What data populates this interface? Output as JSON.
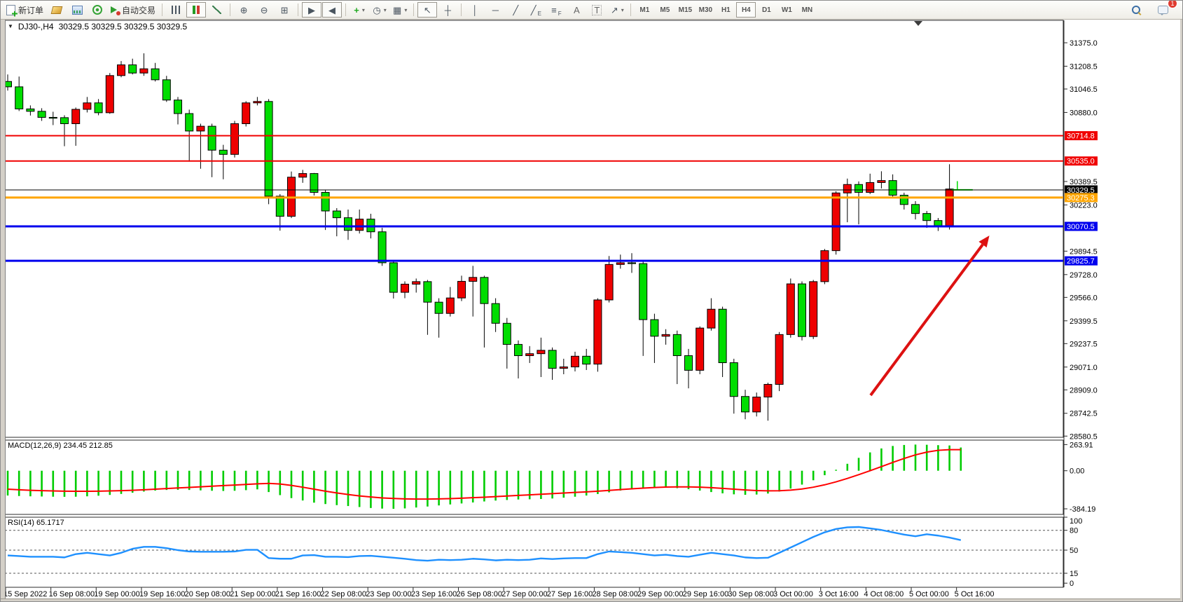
{
  "toolbar": {
    "new_order_label": "新订单",
    "autotrading_label": "自动交易",
    "notification_count": "1",
    "icons": {
      "collapse": "▼",
      "dropdown": "▾",
      "zoom_in": "⊕",
      "zoom_out": "⊖",
      "tile": "⊞",
      "autoscroll": "▶",
      "chart_shift": "◀",
      "indicators": "+",
      "clock": "◷",
      "template": "▦",
      "pointer": "↖",
      "crosshair": "┼",
      "vline": "│",
      "hline": "─",
      "trendline": "╱",
      "channel": "╱",
      "channel_sub": "E",
      "fibo": "≡",
      "fibo_sub": "F",
      "text_tool": "A",
      "label_tool": "T",
      "arrows_tool": "↗"
    },
    "timeframes": [
      {
        "label": "M1",
        "active": false
      },
      {
        "label": "M5",
        "active": false
      },
      {
        "label": "M15",
        "active": false
      },
      {
        "label": "M30",
        "active": false
      },
      {
        "label": "H1",
        "active": false
      },
      {
        "label": "H4",
        "active": true
      },
      {
        "label": "D1",
        "active": false
      },
      {
        "label": "W1",
        "active": false
      },
      {
        "label": "MN",
        "active": false
      }
    ]
  },
  "chart": {
    "title_symbol": "DJ30-,H4",
    "title_quotes": "30329.5 30329.5 30329.5 30329.5",
    "macd_label": "MACD(12,26,9) 234.45 212.85",
    "rsi_label": "RSI(14) 65.1717"
  },
  "chart_data": {
    "type": "candlestick",
    "symbol": "DJ30-",
    "period": "H4",
    "up_color": "#ee0000",
    "down_color": "#00dd00",
    "ohlc": [
      [
        31100,
        31150,
        31035,
        31062
      ],
      [
        31062,
        31135,
        30890,
        30905
      ],
      [
        30905,
        30930,
        30858,
        30888
      ],
      [
        30888,
        30910,
        30820,
        30845
      ],
      [
        30845,
        30885,
        30790,
        30840
      ],
      [
        30843,
        30860,
        30640,
        30800
      ],
      [
        30800,
        30915,
        30643,
        30902
      ],
      [
        30902,
        30990,
        30880,
        30948
      ],
      [
        30948,
        30975,
        30860,
        30878
      ],
      [
        30878,
        31160,
        30870,
        31142
      ],
      [
        31142,
        31245,
        31130,
        31218
      ],
      [
        31218,
        31262,
        31150,
        31160
      ],
      [
        31160,
        31300,
        31140,
        31190
      ],
      [
        31190,
        31232,
        31100,
        31112
      ],
      [
        31112,
        31140,
        30955,
        30968
      ],
      [
        30968,
        30990,
        30795,
        30872
      ],
      [
        30872,
        30900,
        30530,
        30748
      ],
      [
        30748,
        30800,
        30480,
        30782
      ],
      [
        30782,
        30800,
        30420,
        30612
      ],
      [
        30612,
        30650,
        30405,
        30582
      ],
      [
        30582,
        30820,
        30560,
        30800
      ],
      [
        30800,
        30960,
        30780,
        30948
      ],
      [
        30948,
        30990,
        30930,
        30958
      ],
      [
        30958,
        30975,
        30228,
        30285
      ],
      [
        30285,
        30300,
        30040,
        30142
      ],
      [
        30142,
        30460,
        30130,
        30420
      ],
      [
        30420,
        30472,
        30380,
        30446
      ],
      [
        30446,
        30450,
        30290,
        30312
      ],
      [
        30312,
        30330,
        30045,
        30180
      ],
      [
        30180,
        30200,
        30000,
        30132
      ],
      [
        30132,
        30190,
        29975,
        30042
      ],
      [
        30042,
        30190,
        30020,
        30122
      ],
      [
        30122,
        30160,
        29985,
        30032
      ],
      [
        30032,
        30060,
        29790,
        29812
      ],
      [
        29812,
        29830,
        29558,
        29602
      ],
      [
        29602,
        29680,
        29560,
        29660
      ],
      [
        29660,
        29700,
        29600,
        29678
      ],
      [
        29678,
        29690,
        29300,
        29532
      ],
      [
        29532,
        29560,
        29280,
        29452
      ],
      [
        29452,
        29640,
        29430,
        29562
      ],
      [
        29562,
        29720,
        29540,
        29680
      ],
      [
        29680,
        29790,
        29430,
        29708
      ],
      [
        29708,
        29720,
        29210,
        29522
      ],
      [
        29522,
        29560,
        29320,
        29382
      ],
      [
        29382,
        29420,
        29060,
        29232
      ],
      [
        29232,
        29260,
        28990,
        29152
      ],
      [
        29152,
        29220,
        29100,
        29166
      ],
      [
        29166,
        29280,
        29000,
        29190
      ],
      [
        29190,
        29210,
        28980,
        29062
      ],
      [
        29062,
        29130,
        29020,
        29072
      ],
      [
        29072,
        29180,
        29040,
        29148
      ],
      [
        29148,
        29200,
        29050,
        29092
      ],
      [
        29092,
        29560,
        29038,
        29548
      ],
      [
        29548,
        29860,
        29530,
        29800
      ],
      [
        29800,
        29870,
        29770,
        29812
      ],
      [
        29812,
        29880,
        29740,
        29806
      ],
      [
        29806,
        29820,
        29150,
        29408
      ],
      [
        29408,
        29450,
        29100,
        29290
      ],
      [
        29290,
        29340,
        29230,
        29302
      ],
      [
        29302,
        29330,
        28950,
        29152
      ],
      [
        29152,
        29200,
        28920,
        29048
      ],
      [
        29048,
        29360,
        29020,
        29348
      ],
      [
        29348,
        29560,
        29330,
        29482
      ],
      [
        29482,
        29500,
        29000,
        29102
      ],
      [
        29102,
        29130,
        28740,
        28862
      ],
      [
        28862,
        28910,
        28700,
        28752
      ],
      [
        28752,
        28890,
        28720,
        28858
      ],
      [
        28858,
        28960,
        28690,
        28948
      ],
      [
        28948,
        29320,
        28900,
        29302
      ],
      [
        29302,
        29700,
        29280,
        29662
      ],
      [
        29662,
        29680,
        29260,
        29288
      ],
      [
        29288,
        29690,
        29270,
        29678
      ],
      [
        29678,
        29910,
        29660,
        29898
      ],
      [
        29898,
        30320,
        29870,
        30308
      ],
      [
        30308,
        30410,
        30100,
        30368
      ],
      [
        30368,
        30390,
        30085,
        30312
      ],
      [
        30312,
        30445,
        30300,
        30382
      ],
      [
        30382,
        30462,
        30340,
        30396
      ],
      [
        30396,
        30440,
        30280,
        30292
      ],
      [
        30292,
        30310,
        30190,
        30226
      ],
      [
        30226,
        30250,
        30120,
        30162
      ],
      [
        30162,
        30180,
        30060,
        30112
      ],
      [
        30112,
        30130,
        30038,
        30076
      ],
      [
        30076,
        30512,
        30048,
        30336
      ],
      [
        30336,
        30392,
        30326,
        30330
      ]
    ],
    "price_ticks": [
      {
        "label": "31375.0",
        "value": 31375.0
      },
      {
        "label": "31208.5",
        "value": 31208.5
      },
      {
        "label": "31046.5",
        "value": 31046.5
      },
      {
        "label": "30880.0",
        "value": 30880.0
      },
      {
        "label": "30389.5",
        "value": 30389.5
      },
      {
        "label": "30223.0",
        "value": 30223.0
      },
      {
        "label": "29894.5",
        "value": 29894.5
      },
      {
        "label": "29728.0",
        "value": 29728.0
      },
      {
        "label": "29566.0",
        "value": 29566.0
      },
      {
        "label": "29399.5",
        "value": 29399.5
      },
      {
        "label": "29237.5",
        "value": 29237.5
      },
      {
        "label": "29071.0",
        "value": 29071.0
      },
      {
        "label": "28909.0",
        "value": 28909.0
      },
      {
        "label": "28742.5",
        "value": 28742.5
      },
      {
        "label": "28580.5",
        "value": 28580.5
      }
    ],
    "levels": [
      {
        "label": "30714.8",
        "value": 30714.8,
        "color": "#f00000",
        "width": 2
      },
      {
        "label": "30535.0",
        "value": 30535.0,
        "color": "#f00000",
        "width": 2
      },
      {
        "label": "30329.5",
        "value": 30329.5,
        "color": "#000000",
        "width": 1
      },
      {
        "label": "30275.3",
        "value": 30275.3,
        "color": "#ffa500",
        "width": 3
      },
      {
        "label": "30070.5",
        "value": 30070.5,
        "color": "#0000ee",
        "width": 3
      },
      {
        "label": "29825.7",
        "value": 29825.7,
        "color": "#0000ee",
        "width": 3
      }
    ],
    "macd": {
      "hist_color": "#00cc00",
      "signal_color": "#ff0000",
      "axis": [
        {
          "label": "263.91",
          "value": 263.91
        },
        {
          "label": "0.00",
          "value": 0
        },
        {
          "label": "-384.19",
          "value": -384.19
        }
      ],
      "histogram": [
        -250,
        -255,
        -258,
        -260,
        -262,
        -263,
        -262,
        -258,
        -252,
        -244,
        -234,
        -222,
        -210,
        -200,
        -194,
        -192,
        -194,
        -198,
        -202,
        -204,
        -202,
        -196,
        -188,
        -215,
        -246,
        -276,
        -300,
        -322,
        -336,
        -347,
        -356,
        -366,
        -376,
        -382,
        -384.19,
        -380,
        -371,
        -361,
        -350,
        -340,
        -330,
        -320,
        -310,
        -301,
        -295,
        -290,
        -288,
        -285,
        -280,
        -272,
        -262,
        -250,
        -235,
        -218,
        -200,
        -186,
        -176,
        -170,
        -170,
        -176,
        -186,
        -200,
        -215,
        -228,
        -238,
        -243,
        -240,
        -230,
        -210,
        -180,
        -140,
        -96,
        -45,
        10,
        70,
        130,
        185,
        225,
        250,
        260,
        263.91,
        262,
        258,
        255,
        234.45
      ],
      "signal": [
        -186,
        -192,
        -197,
        -201,
        -204,
        -206,
        -207,
        -207,
        -206,
        -204,
        -201,
        -197,
        -192,
        -186,
        -180,
        -174,
        -168,
        -162,
        -156,
        -150,
        -144,
        -138,
        -132,
        -128,
        -134,
        -148,
        -166,
        -186,
        -206,
        -224,
        -240,
        -254,
        -265,
        -274,
        -280,
        -284,
        -286,
        -286,
        -284,
        -281,
        -277,
        -272,
        -267,
        -261,
        -255,
        -249,
        -243,
        -237,
        -231,
        -225,
        -219,
        -213,
        -206,
        -198,
        -190,
        -182,
        -175,
        -169,
        -165,
        -163,
        -163,
        -166,
        -171,
        -178,
        -186,
        -194,
        -200,
        -203,
        -202,
        -196,
        -184,
        -166,
        -142,
        -112,
        -78,
        -40,
        0,
        42,
        84,
        124,
        160,
        188,
        206,
        213,
        212.85
      ]
    },
    "rsi": {
      "color": "#1e90ff",
      "dashed_levels": [
        80,
        50,
        15
      ],
      "axis": [
        {
          "label": "100",
          "value": 100
        },
        {
          "label": "80",
          "value": 80
        },
        {
          "label": "50",
          "value": 50
        },
        {
          "label": "15",
          "value": 15
        },
        {
          "label": "0",
          "value": 0
        }
      ],
      "values": [
        42,
        41,
        40,
        40,
        40,
        39,
        44,
        46,
        44,
        42,
        46,
        52,
        55,
        55,
        53,
        50,
        48,
        47.5,
        47.5,
        47.5,
        48,
        50.5,
        50.5,
        38,
        37,
        37,
        42,
        42.5,
        40,
        40,
        39.5,
        41,
        41.5,
        40,
        38.5,
        37,
        35,
        34,
        35.5,
        35,
        35.5,
        37,
        36,
        34.5,
        35.5,
        35,
        35.5,
        37.5,
        36.5,
        37.5,
        38,
        38,
        44,
        48,
        47,
        46,
        44,
        42,
        43,
        41,
        40,
        43,
        46,
        44,
        42,
        39,
        38,
        38.5,
        46,
        54,
        62,
        70,
        77,
        82,
        84.5,
        85,
        83,
        80.5,
        77,
        73.5,
        71,
        74,
        72,
        69,
        65.2
      ]
    },
    "time_labels": [
      "15 Sep 2022",
      "16 Sep 08:00",
      "19 Sep 00:00",
      "19 Sep 16:00",
      "20 Sep 08:00",
      "21 Sep 00:00",
      "21 Sep 16:00",
      "22 Sep 08:00",
      "23 Sep 00:00",
      "23 Sep 16:00",
      "26 Sep 08:00",
      "27 Sep 00:00",
      "27 Sep 16:00",
      "28 Sep 08:00",
      "29 Sep 00:00",
      "29 Sep 16:00",
      "30 Sep 08:00",
      "3 Oct 00:00",
      "3 Oct 16:00",
      "4 Oct 08:00",
      "5 Oct 00:00",
      "5 Oct 16:00"
    ],
    "arrow": {
      "color": "#dd1111",
      "from": [
        1242,
        563
      ],
      "to": [
        1402,
        348
      ]
    }
  }
}
